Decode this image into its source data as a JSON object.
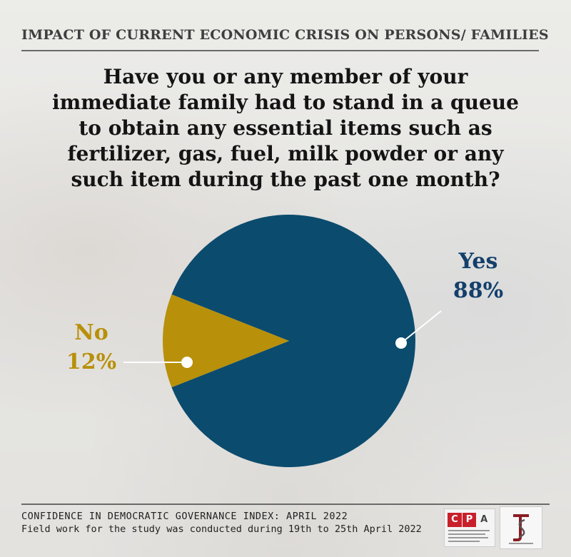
{
  "header": {
    "title": "IMPACT OF CURRENT ECONOMIC CRISIS ON PERSONS/ FAMILIES"
  },
  "question": {
    "lines": [
      "Have you or any member of your",
      "immediate family had to stand in a queue",
      "to obtain any essential items such as",
      "fertilizer, gas, fuel, milk powder or any",
      "such item during the past one month?"
    ]
  },
  "chart_data": {
    "type": "pie",
    "title": "Have you or any member of your immediate family had to stand in a queue to obtain any essential items such as fertilizer, gas, fuel, milk powder or any such item during the past one month?",
    "slices": [
      {
        "label": "Yes",
        "value": 88,
        "value_label": "88%",
        "color": "#0b4b6e"
      },
      {
        "label": "No",
        "value": 12,
        "value_label": "12%",
        "color": "#b8900a"
      }
    ]
  },
  "footer": {
    "line1": "CONFIDENCE IN DEMOCRATIC GOVERNANCE INDEX: APRIL 2022",
    "line2": "Field work for the study was conducted during 19th to 25th April 2022"
  },
  "logos": {
    "cpa": {
      "letters": [
        "C",
        "P",
        "A"
      ]
    },
    "ssa": {}
  }
}
